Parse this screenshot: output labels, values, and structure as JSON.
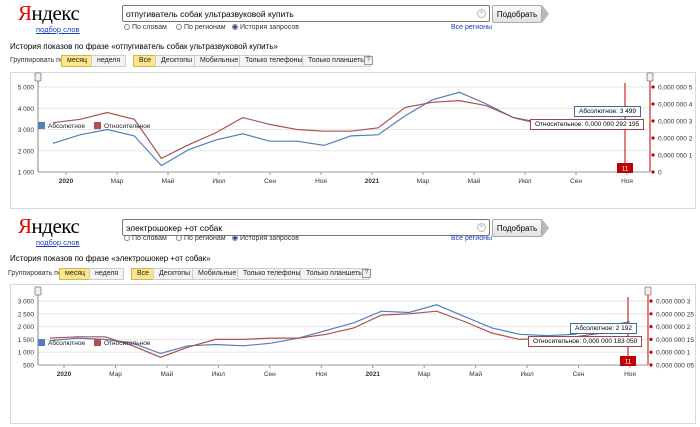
{
  "panels": [
    {
      "logo": "Яндекс",
      "logo_first": "Я",
      "logo_rest": "ндекс",
      "logo_subtitle": "подбор слов",
      "query": "отпугиватель собак ультразвуковой купить",
      "search_button": "Подобрать",
      "radio_options": [
        "По словам",
        "По регионам",
        "История запросов"
      ],
      "radio_selected": "История запросов",
      "all_regions": "Все регионы",
      "history_title": "История показов по фразе «отпугиватель собак ультразвуковой купить»",
      "group_by_label": "Группировать по",
      "group_options": [
        "месяц",
        "неделя"
      ],
      "group_selected": "месяц",
      "device_tabs": [
        "Все",
        "Десктопы",
        "Мобильные",
        "Только телефоны",
        "Только планшеты"
      ],
      "device_selected": "Все",
      "help": "?",
      "tooltip_absolute": "Абсолютное: 3 499",
      "tooltip_relative": "Относительное: 0,000 000 292 195",
      "marker_label": "11"
    },
    {
      "logo": "Яндекс",
      "logo_first": "Я",
      "logo_rest": "ндекс",
      "logo_subtitle": "подбор слов",
      "query": "электрошокер +от собак",
      "search_button": "Подобрать",
      "radio_options": [
        "По словам",
        "По регионам",
        "История запросов"
      ],
      "radio_selected": "История запросов",
      "all_regions": "Все регионы",
      "history_title": "История показов по фразе «электрошокер +от собак»",
      "group_by_label": "Группировать по",
      "group_options": [
        "месяц",
        "неделя"
      ],
      "group_selected": "месяц",
      "device_tabs": [
        "Все",
        "Десктопы",
        "Мобильные",
        "Только телефоны",
        "Только планшеты"
      ],
      "device_selected": "Все",
      "help": "?",
      "tooltip_absolute": "Абсолютное: 2 192",
      "tooltip_relative": "Относительное: 0,000 000 183 050",
      "marker_label": "11"
    }
  ],
  "colors": {
    "absolute": "#4f81bd",
    "relative": "#b05050",
    "marker": "#c00000",
    "brand_red": "#e60000",
    "link": "#1a3dc1"
  },
  "chart_data": [
    {
      "type": "line",
      "title": "История показов по фразе «отпугиватель собак ультразвуковой купить»",
      "x_labels": [
        "2020",
        "Мар",
        "Май",
        "Июл",
        "Сен",
        "Ноя",
        "2021",
        "Мар",
        "Май",
        "Июл",
        "Сен",
        "Ноя"
      ],
      "y_left_ticks": [
        "5 000",
        "4 000",
        "3 000",
        "2 000",
        "1 000"
      ],
      "y_right_ticks": [
        "0,000 000 5",
        "0,000 000 4",
        "0,000 000 3",
        "0,000 000 2",
        "0,000 000 1",
        "0"
      ],
      "ylim_left": [
        1000,
        5000
      ],
      "ylim_right": [
        0,
        5
      ],
      "series": [
        {
          "name": "Абсолютное",
          "axis": "left",
          "values": [
            2350,
            2750,
            3000,
            2700,
            1300,
            2050,
            2500,
            2800,
            2450,
            2450,
            2250,
            2700,
            2750,
            3650,
            4400,
            4750,
            4200,
            3550,
            3250,
            3350,
            3100,
            3499
          ]
        },
        {
          "name": "Относительное",
          "axis": "right",
          "values": [
            2.9,
            3.1,
            3.5,
            3.1,
            0.8,
            1.6,
            2.3,
            3.2,
            2.8,
            2.5,
            2.4,
            2.4,
            2.6,
            3.8,
            4.1,
            4.2,
            3.9,
            3.2,
            2.9,
            2.8,
            2.7,
            2.92
          ]
        }
      ],
      "legend": [
        "Абсолютное",
        "Относительное"
      ]
    },
    {
      "type": "line",
      "title": "История показов по фразе «электрошокер +от собак»",
      "x_labels": [
        "2020",
        "Мар",
        "Май",
        "Июл",
        "Сен",
        "Ноя",
        "2021",
        "Мар",
        "Май",
        "Июл",
        "Сен",
        "Ноя"
      ],
      "y_left_ticks": [
        "3 000",
        "2 500",
        "2 000",
        "1 500",
        "1 000",
        "500"
      ],
      "y_right_ticks": [
        "0,000 000 3",
        "0,000 000 25",
        "0,000 000 2",
        "0,000 000 15",
        "0,000 000 1",
        "0,000 000 05"
      ],
      "ylim_left": [
        500,
        3000
      ],
      "ylim_right": [
        0.5,
        3
      ],
      "series": [
        {
          "name": "Абсолютное",
          "axis": "left",
          "values": [
            1450,
            1550,
            1500,
            1350,
            950,
            1250,
            1300,
            1250,
            1350,
            1550,
            1850,
            2150,
            2600,
            2550,
            2850,
            2400,
            1950,
            1700,
            1650,
            1700,
            2000,
            2192
          ]
        },
        {
          "name": "Относительное",
          "axis": "right",
          "values": [
            1.55,
            1.6,
            1.6,
            1.25,
            0.8,
            1.2,
            1.5,
            1.5,
            1.55,
            1.55,
            1.7,
            1.95,
            2.45,
            2.5,
            2.6,
            2.2,
            1.75,
            1.5,
            1.55,
            1.6,
            1.75,
            1.83
          ]
        }
      ],
      "legend": [
        "Абсолютное",
        "Относительное"
      ]
    }
  ]
}
